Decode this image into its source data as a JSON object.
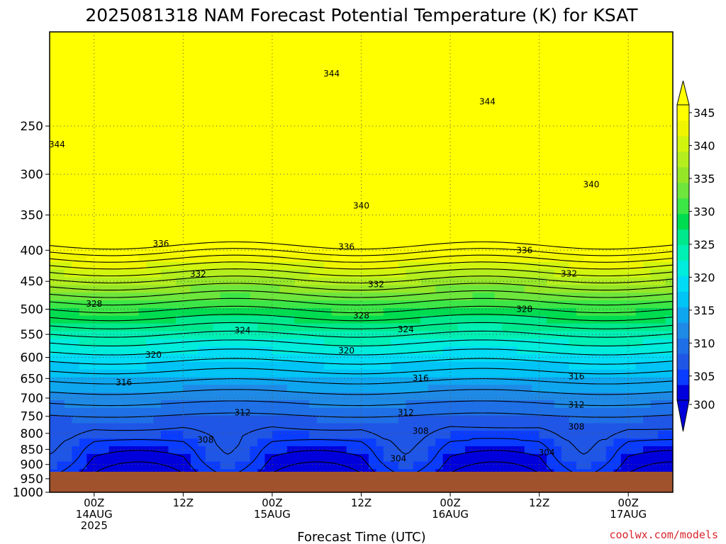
{
  "chart_data": {
    "type": "heatmap",
    "title": "2025081318 NAM Forecast Potential Temperature (K) for KSAT",
    "xlabel": "Forecast Time (UTC)",
    "ylabel": "",
    "y_ticks": [
      "250",
      "300",
      "350",
      "400",
      "450",
      "500",
      "550",
      "600",
      "650",
      "700",
      "750",
      "800",
      "850",
      "900",
      "950",
      "1000"
    ],
    "x_ticks": [
      {
        "hour": 6,
        "lines": [
          "00Z",
          "14AUG",
          "2025"
        ]
      },
      {
        "hour": 18,
        "lines": [
          "12Z"
        ]
      },
      {
        "hour": 30,
        "lines": [
          "00Z",
          "15AUG"
        ]
      },
      {
        "hour": 42,
        "lines": [
          "12Z"
        ]
      },
      {
        "hour": 54,
        "lines": [
          "00Z",
          "16AUG"
        ]
      },
      {
        "hour": 66,
        "lines": [
          "12Z"
        ]
      },
      {
        "hour": 78,
        "lines": [
          "00Z",
          "17AUG"
        ]
      }
    ],
    "x_range_hours": [
      0,
      84
    ],
    "y_range_hpa": [
      175,
      1000
    ],
    "grid": true,
    "colorbar": {
      "ticks": [
        "345",
        "340",
        "335",
        "330",
        "325",
        "320",
        "315",
        "310",
        "305",
        "300"
      ],
      "levels": [
        300,
        302.5,
        305,
        307.5,
        310,
        312.5,
        315,
        317.5,
        320,
        322.5,
        325,
        327.5,
        330,
        332.5,
        335,
        337.5,
        340,
        342.5,
        345
      ],
      "colors": [
        "#0000dc",
        "#0a3cff",
        "#1f56e6",
        "#1f6fe6",
        "#1f8ae6",
        "#0fa6f0",
        "#00c4f5",
        "#00dcf5",
        "#00ecdc",
        "#00f0b4",
        "#00e88c",
        "#00dc50",
        "#3ce646",
        "#6ee63c",
        "#96e628",
        "#b4ee1e",
        "#d2f50f",
        "#f0f500",
        "#ffff00"
      ],
      "under_color": "#0000dc",
      "over_color": "#ffff00"
    },
    "contour_labels": [
      {
        "text": "344",
        "hour": 38,
        "p": 205
      },
      {
        "text": "344",
        "hour": 1,
        "p": 268
      },
      {
        "text": "344",
        "hour": 59,
        "p": 228
      },
      {
        "text": "340",
        "hour": 42,
        "p": 338
      },
      {
        "text": "340",
        "hour": 73,
        "p": 312
      },
      {
        "text": "336",
        "hour": 15,
        "p": 390
      },
      {
        "text": "336",
        "hour": 40,
        "p": 395
      },
      {
        "text": "336",
        "hour": 64,
        "p": 400
      },
      {
        "text": "332",
        "hour": 20,
        "p": 438
      },
      {
        "text": "332",
        "hour": 44,
        "p": 455
      },
      {
        "text": "332",
        "hour": 70,
        "p": 437
      },
      {
        "text": "328",
        "hour": 6,
        "p": 490
      },
      {
        "text": "328",
        "hour": 42,
        "p": 512
      },
      {
        "text": "328",
        "hour": 64,
        "p": 500
      },
      {
        "text": "324",
        "hour": 26,
        "p": 542
      },
      {
        "text": "324",
        "hour": 48,
        "p": 540
      },
      {
        "text": "320",
        "hour": 14,
        "p": 594
      },
      {
        "text": "320",
        "hour": 40,
        "p": 585
      },
      {
        "text": "316",
        "hour": 10,
        "p": 660
      },
      {
        "text": "316",
        "hour": 50,
        "p": 649
      },
      {
        "text": "316",
        "hour": 71,
        "p": 645
      },
      {
        "text": "312",
        "hour": 26,
        "p": 740
      },
      {
        "text": "312",
        "hour": 48,
        "p": 740
      },
      {
        "text": "312",
        "hour": 71,
        "p": 718
      },
      {
        "text": "308",
        "hour": 21,
        "p": 820
      },
      {
        "text": "308",
        "hour": 50,
        "p": 793
      },
      {
        "text": "308",
        "hour": 71,
        "p": 780
      },
      {
        "text": "304",
        "hour": 47,
        "p": 880
      },
      {
        "text": "304",
        "hour": 67,
        "p": 860
      }
    ]
  },
  "credit": "coolwx.com/models"
}
